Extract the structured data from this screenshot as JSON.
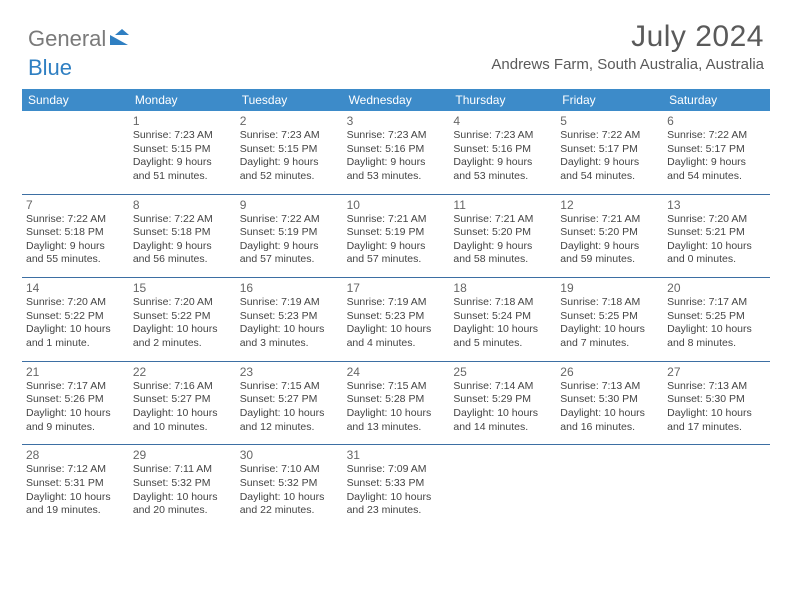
{
  "logo": {
    "general": "General",
    "blue": "Blue"
  },
  "title": "July 2024",
  "location": "Andrews Farm, South Australia, Australia",
  "colors": {
    "header_bar": "#3d8bc9",
    "text": "#444444",
    "muted": "#666666",
    "title": "#5a5a5a",
    "logo_gray": "#7a7a7a",
    "logo_blue": "#2f7fc2",
    "divider": "#3d6fa3",
    "background": "#ffffff"
  },
  "weekdays": [
    "Sunday",
    "Monday",
    "Tuesday",
    "Wednesday",
    "Thursday",
    "Friday",
    "Saturday"
  ],
  "weeks": [
    [
      null,
      {
        "n": "1",
        "sr": "Sunrise: 7:23 AM",
        "ss": "Sunset: 5:15 PM",
        "d1": "Daylight: 9 hours",
        "d2": "and 51 minutes."
      },
      {
        "n": "2",
        "sr": "Sunrise: 7:23 AM",
        "ss": "Sunset: 5:15 PM",
        "d1": "Daylight: 9 hours",
        "d2": "and 52 minutes."
      },
      {
        "n": "3",
        "sr": "Sunrise: 7:23 AM",
        "ss": "Sunset: 5:16 PM",
        "d1": "Daylight: 9 hours",
        "d2": "and 53 minutes."
      },
      {
        "n": "4",
        "sr": "Sunrise: 7:23 AM",
        "ss": "Sunset: 5:16 PM",
        "d1": "Daylight: 9 hours",
        "d2": "and 53 minutes."
      },
      {
        "n": "5",
        "sr": "Sunrise: 7:22 AM",
        "ss": "Sunset: 5:17 PM",
        "d1": "Daylight: 9 hours",
        "d2": "and 54 minutes."
      },
      {
        "n": "6",
        "sr": "Sunrise: 7:22 AM",
        "ss": "Sunset: 5:17 PM",
        "d1": "Daylight: 9 hours",
        "d2": "and 54 minutes."
      }
    ],
    [
      {
        "n": "7",
        "sr": "Sunrise: 7:22 AM",
        "ss": "Sunset: 5:18 PM",
        "d1": "Daylight: 9 hours",
        "d2": "and 55 minutes."
      },
      {
        "n": "8",
        "sr": "Sunrise: 7:22 AM",
        "ss": "Sunset: 5:18 PM",
        "d1": "Daylight: 9 hours",
        "d2": "and 56 minutes."
      },
      {
        "n": "9",
        "sr": "Sunrise: 7:22 AM",
        "ss": "Sunset: 5:19 PM",
        "d1": "Daylight: 9 hours",
        "d2": "and 57 minutes."
      },
      {
        "n": "10",
        "sr": "Sunrise: 7:21 AM",
        "ss": "Sunset: 5:19 PM",
        "d1": "Daylight: 9 hours",
        "d2": "and 57 minutes."
      },
      {
        "n": "11",
        "sr": "Sunrise: 7:21 AM",
        "ss": "Sunset: 5:20 PM",
        "d1": "Daylight: 9 hours",
        "d2": "and 58 minutes."
      },
      {
        "n": "12",
        "sr": "Sunrise: 7:21 AM",
        "ss": "Sunset: 5:20 PM",
        "d1": "Daylight: 9 hours",
        "d2": "and 59 minutes."
      },
      {
        "n": "13",
        "sr": "Sunrise: 7:20 AM",
        "ss": "Sunset: 5:21 PM",
        "d1": "Daylight: 10 hours",
        "d2": "and 0 minutes."
      }
    ],
    [
      {
        "n": "14",
        "sr": "Sunrise: 7:20 AM",
        "ss": "Sunset: 5:22 PM",
        "d1": "Daylight: 10 hours",
        "d2": "and 1 minute."
      },
      {
        "n": "15",
        "sr": "Sunrise: 7:20 AM",
        "ss": "Sunset: 5:22 PM",
        "d1": "Daylight: 10 hours",
        "d2": "and 2 minutes."
      },
      {
        "n": "16",
        "sr": "Sunrise: 7:19 AM",
        "ss": "Sunset: 5:23 PM",
        "d1": "Daylight: 10 hours",
        "d2": "and 3 minutes."
      },
      {
        "n": "17",
        "sr": "Sunrise: 7:19 AM",
        "ss": "Sunset: 5:23 PM",
        "d1": "Daylight: 10 hours",
        "d2": "and 4 minutes."
      },
      {
        "n": "18",
        "sr": "Sunrise: 7:18 AM",
        "ss": "Sunset: 5:24 PM",
        "d1": "Daylight: 10 hours",
        "d2": "and 5 minutes."
      },
      {
        "n": "19",
        "sr": "Sunrise: 7:18 AM",
        "ss": "Sunset: 5:25 PM",
        "d1": "Daylight: 10 hours",
        "d2": "and 7 minutes."
      },
      {
        "n": "20",
        "sr": "Sunrise: 7:17 AM",
        "ss": "Sunset: 5:25 PM",
        "d1": "Daylight: 10 hours",
        "d2": "and 8 minutes."
      }
    ],
    [
      {
        "n": "21",
        "sr": "Sunrise: 7:17 AM",
        "ss": "Sunset: 5:26 PM",
        "d1": "Daylight: 10 hours",
        "d2": "and 9 minutes."
      },
      {
        "n": "22",
        "sr": "Sunrise: 7:16 AM",
        "ss": "Sunset: 5:27 PM",
        "d1": "Daylight: 10 hours",
        "d2": "and 10 minutes."
      },
      {
        "n": "23",
        "sr": "Sunrise: 7:15 AM",
        "ss": "Sunset: 5:27 PM",
        "d1": "Daylight: 10 hours",
        "d2": "and 12 minutes."
      },
      {
        "n": "24",
        "sr": "Sunrise: 7:15 AM",
        "ss": "Sunset: 5:28 PM",
        "d1": "Daylight: 10 hours",
        "d2": "and 13 minutes."
      },
      {
        "n": "25",
        "sr": "Sunrise: 7:14 AM",
        "ss": "Sunset: 5:29 PM",
        "d1": "Daylight: 10 hours",
        "d2": "and 14 minutes."
      },
      {
        "n": "26",
        "sr": "Sunrise: 7:13 AM",
        "ss": "Sunset: 5:30 PM",
        "d1": "Daylight: 10 hours",
        "d2": "and 16 minutes."
      },
      {
        "n": "27",
        "sr": "Sunrise: 7:13 AM",
        "ss": "Sunset: 5:30 PM",
        "d1": "Daylight: 10 hours",
        "d2": "and 17 minutes."
      }
    ],
    [
      {
        "n": "28",
        "sr": "Sunrise: 7:12 AM",
        "ss": "Sunset: 5:31 PM",
        "d1": "Daylight: 10 hours",
        "d2": "and 19 minutes."
      },
      {
        "n": "29",
        "sr": "Sunrise: 7:11 AM",
        "ss": "Sunset: 5:32 PM",
        "d1": "Daylight: 10 hours",
        "d2": "and 20 minutes."
      },
      {
        "n": "30",
        "sr": "Sunrise: 7:10 AM",
        "ss": "Sunset: 5:32 PM",
        "d1": "Daylight: 10 hours",
        "d2": "and 22 minutes."
      },
      {
        "n": "31",
        "sr": "Sunrise: 7:09 AM",
        "ss": "Sunset: 5:33 PM",
        "d1": "Daylight: 10 hours",
        "d2": "and 23 minutes."
      },
      null,
      null,
      null
    ]
  ]
}
